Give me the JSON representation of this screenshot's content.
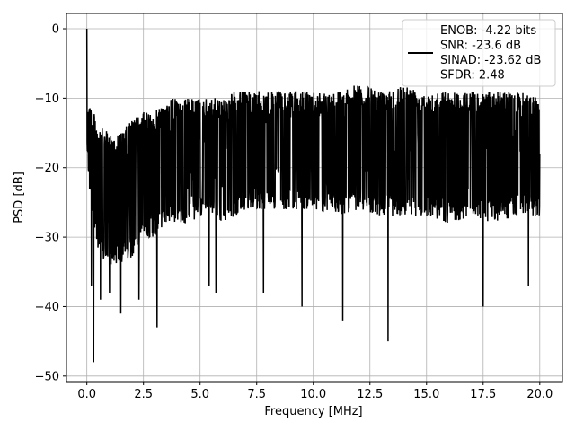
{
  "chart_data": {
    "type": "line",
    "title": "",
    "xlabel": "Frequency [MHz]",
    "ylabel": "PSD [dB]",
    "xlim": [
      -0.9,
      21.0
    ],
    "ylim": [
      -50.8,
      2.2
    ],
    "x_ticks": [
      0.0,
      2.5,
      5.0,
      7.5,
      10.0,
      12.5,
      15.0,
      17.5,
      20.0
    ],
    "x_tick_labels": [
      "0.0",
      "2.5",
      "5.0",
      "7.5",
      "10.0",
      "12.5",
      "15.0",
      "17.5",
      "20.0"
    ],
    "y_ticks": [
      0,
      -10,
      -20,
      -30,
      -40,
      -50
    ],
    "y_tick_labels": [
      "0",
      "−10",
      "−20",
      "−30",
      "−40",
      "−50"
    ],
    "grid": true,
    "legend_position": "top-right",
    "line_color": "#000000",
    "series": [
      {
        "name": "ENOB: -4.22 bits\nSNR: -23.6 dB\nSINAD: -23.62 dB\nSFDR: 2.48",
        "x_range": [
          0.0,
          20.0
        ],
        "envelope": [
          [
            0.0,
            -9,
            -19
          ],
          [
            0.5,
            -14,
            -33
          ],
          [
            1.0,
            -15,
            -34
          ],
          [
            1.5,
            -15,
            -34
          ],
          [
            2.0,
            -13,
            -33
          ],
          [
            2.5,
            -12,
            -30
          ],
          [
            3.0,
            -12,
            -30
          ],
          [
            3.5,
            -10,
            -28
          ],
          [
            4.0,
            -10,
            -28
          ],
          [
            4.5,
            -10,
            -28
          ],
          [
            5.0,
            -10,
            -27
          ],
          [
            5.5,
            -10,
            -27
          ],
          [
            6.0,
            -10,
            -28
          ],
          [
            6.5,
            -9,
            -27
          ],
          [
            7.0,
            -9,
            -26
          ],
          [
            7.5,
            -9,
            -26
          ],
          [
            8.0,
            -9,
            -26
          ],
          [
            9.0,
            -9,
            -26
          ],
          [
            10.0,
            -9,
            -26
          ],
          [
            11.0,
            -9,
            -27
          ],
          [
            12.0,
            -8,
            -26
          ],
          [
            13.0,
            -9,
            -27
          ],
          [
            14.0,
            -8,
            -27
          ],
          [
            15.0,
            -9,
            -27
          ],
          [
            16.0,
            -9,
            -28
          ],
          [
            17.0,
            -9,
            -27
          ],
          [
            18.0,
            -9,
            -28
          ],
          [
            19.0,
            -9,
            -27
          ],
          [
            20.0,
            -10,
            -27
          ]
        ],
        "peaks": [
          [
            0.0,
            0
          ],
          [
            0.05,
            -13
          ],
          [
            0.12,
            -23
          ],
          [
            0.2,
            -37
          ],
          [
            0.3,
            -48
          ],
          [
            0.6,
            -39
          ],
          [
            1.0,
            -38
          ],
          [
            1.5,
            -41
          ],
          [
            2.3,
            -39
          ],
          [
            3.1,
            -43
          ],
          [
            5.4,
            -37
          ],
          [
            5.7,
            -38
          ],
          [
            7.8,
            -38
          ],
          [
            9.5,
            -40
          ],
          [
            11.3,
            -42
          ],
          [
            13.3,
            -45
          ],
          [
            17.5,
            -40
          ],
          [
            19.5,
            -37
          ]
        ]
      }
    ]
  }
}
